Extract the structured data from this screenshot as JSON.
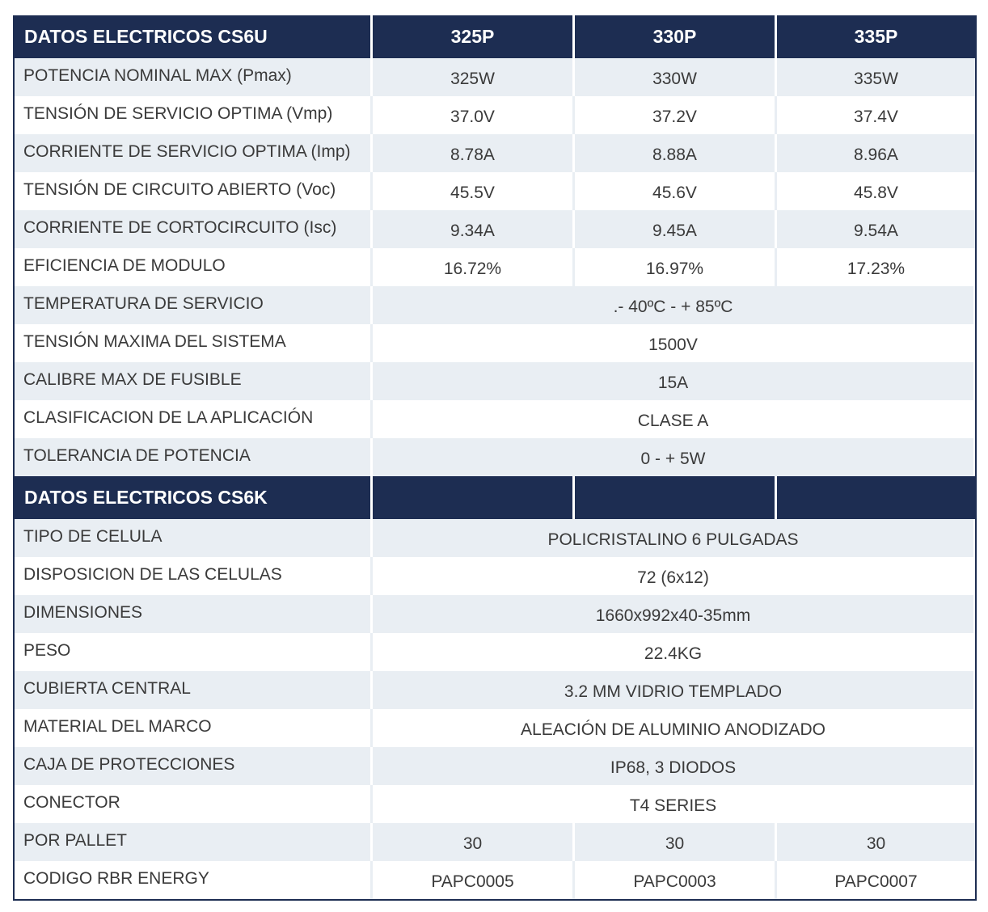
{
  "table1": {
    "title": "DATOS ELECTRICOS CS6U",
    "columns": [
      "325P",
      "330P",
      "335P"
    ],
    "rows": [
      {
        "label": "POTENCIA NOMINAL MAX (Pmax)",
        "values": [
          "325W",
          "330W",
          "335W"
        ]
      },
      {
        "label": "TENSIÓN DE SERVICIO OPTIMA (Vmp)",
        "values": [
          "37.0V",
          "37.2V",
          "37.4V"
        ]
      },
      {
        "label": "CORRIENTE DE SERVICIO OPTIMA (Imp)",
        "values": [
          "8.78A",
          "8.88A",
          "8.96A"
        ]
      },
      {
        "label": "TENSIÓN DE CIRCUITO ABIERTO (Voc)",
        "values": [
          "45.5V",
          "45.6V",
          "45.8V"
        ]
      },
      {
        "label": "CORRIENTE DE CORTOCIRCUITO (Isc)",
        "values": [
          "9.34A",
          "9.45A",
          "9.54A"
        ]
      },
      {
        "label": "EFICIENCIA DE MODULO",
        "values": [
          "16.72%",
          "16.97%",
          "17.23%"
        ]
      },
      {
        "label": "TEMPERATURA DE SERVICIO",
        "span": ".- 40ºC - + 85ºC"
      },
      {
        "label": "TENSIÓN MAXIMA DEL SISTEMA",
        "span": "1500V"
      },
      {
        "label": "CALIBRE MAX DE FUSIBLE",
        "span": "15A"
      },
      {
        "label": "CLASIFICACION DE LA APLICACIÓN",
        "span": "CLASE A"
      },
      {
        "label": "TOLERANCIA DE POTENCIA",
        "span": "0 - + 5W"
      }
    ]
  },
  "table2": {
    "title": "DATOS ELECTRICOS CS6K",
    "columns": [
      "",
      "",
      ""
    ],
    "rows": [
      {
        "label": "TIPO DE CELULA",
        "span": "POLICRISTALINO 6 PULGADAS"
      },
      {
        "label": "DISPOSICION DE LAS CELULAS",
        "span": "72 (6x12)"
      },
      {
        "label": "DIMENSIONES",
        "span": "1660x992x40-35mm"
      },
      {
        "label": "PESO",
        "span": "22.4KG"
      },
      {
        "label": "CUBIERTA CENTRAL",
        "span": "3.2 MM VIDRIO TEMPLADO"
      },
      {
        "label": "MATERIAL DEL MARCO",
        "span": "ALEACIÓN DE ALUMINIO ANODIZADO"
      },
      {
        "label": "CAJA DE PROTECCIONES",
        "span": "IP68, 3 DIODOS"
      },
      {
        "label": "CONECTOR",
        "span": "T4 SERIES"
      },
      {
        "label": "POR PALLET",
        "values": [
          "30",
          "30",
          "30"
        ]
      },
      {
        "label": "CODIGO RBR ENERGY",
        "values": [
          "PAPC0005",
          "PAPC0003",
          "PAPC0007"
        ]
      }
    ]
  },
  "colors": {
    "header_bg": "#1d2d52",
    "row_shade": "#e9eef3",
    "row_plain": "#ffffff"
  }
}
